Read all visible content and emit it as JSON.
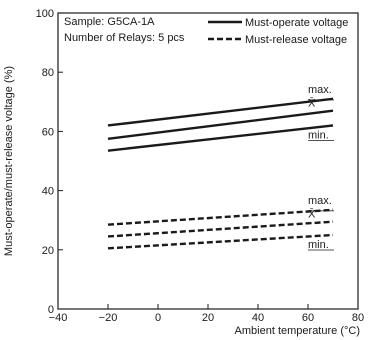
{
  "chart_data": {
    "type": "line",
    "xlabel": "Ambient temperature (°C)",
    "ylabel": "Must-operate/must-release voltage (%)",
    "xlim": [
      -40,
      80
    ],
    "ylim": [
      0,
      100
    ],
    "xticks": [
      -40,
      -20,
      0,
      20,
      40,
      60,
      80
    ],
    "yticks": [
      0,
      20,
      40,
      60,
      80,
      100
    ],
    "grid": false,
    "legend_position": "top-right",
    "info": [
      "Sample: G5CA-1A",
      "Number of Relays: 5 pcs"
    ],
    "legend": [
      {
        "label": "Must-operate voltage",
        "style": "solid"
      },
      {
        "label": "Must-release voltage",
        "style": "dashed"
      }
    ],
    "series": [
      {
        "group": "Must-operate voltage",
        "style": "solid",
        "annotation": "max.",
        "x": [
          -20,
          70
        ],
        "y": [
          62,
          71
        ]
      },
      {
        "group": "Must-operate voltage",
        "style": "solid",
        "annotation": "X̄",
        "x": [
          -20,
          70
        ],
        "y": [
          57.5,
          67
        ]
      },
      {
        "group": "Must-operate voltage",
        "style": "solid",
        "annotation": "min.",
        "x": [
          -20,
          70
        ],
        "y": [
          53.5,
          62
        ]
      },
      {
        "group": "Must-release voltage",
        "style": "dashed",
        "annotation": "max.",
        "x": [
          -20,
          70
        ],
        "y": [
          28.5,
          33.5
        ]
      },
      {
        "group": "Must-release voltage",
        "style": "dashed",
        "annotation": "X̄",
        "x": [
          -20,
          70
        ],
        "y": [
          24.5,
          29.5
        ]
      },
      {
        "group": "Must-release voltage",
        "style": "dashed",
        "annotation": "min.",
        "x": [
          -20,
          70
        ],
        "y": [
          20.5,
          25
        ]
      }
    ]
  }
}
